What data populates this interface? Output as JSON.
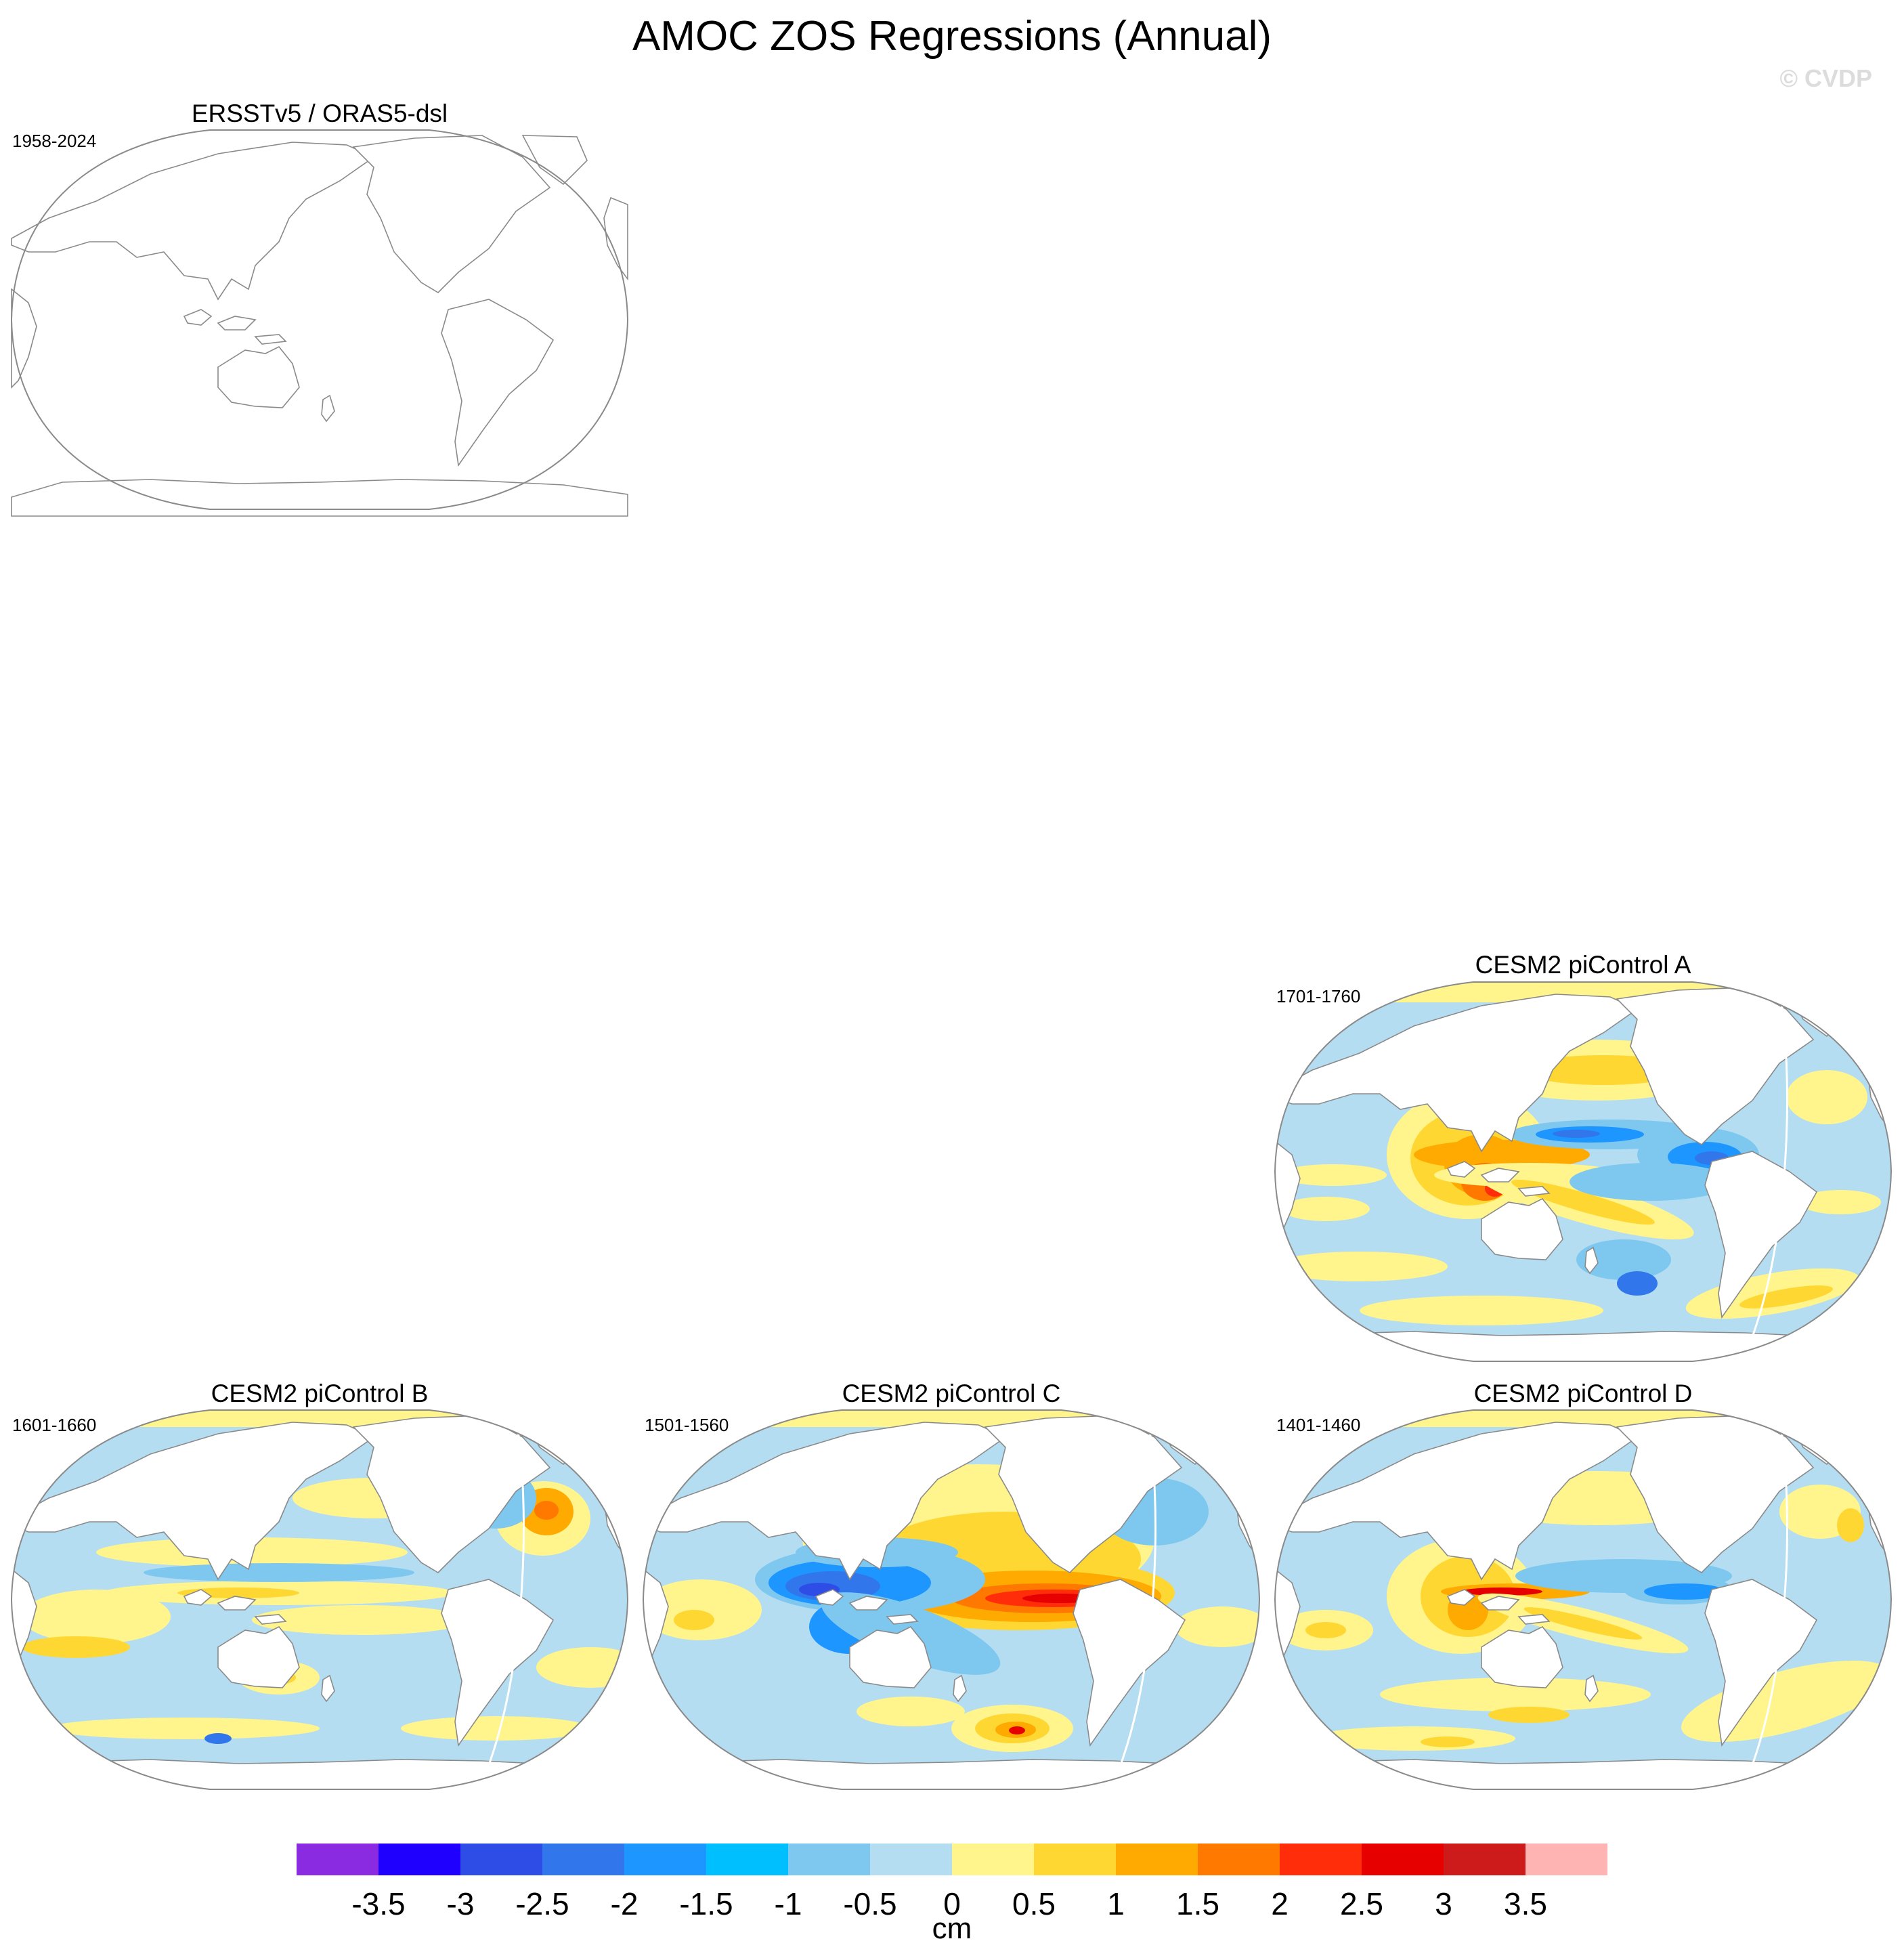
{
  "figure": {
    "title": "AMOC ZOS Regressions (Annual)",
    "watermark": "© CVDP"
  },
  "panels": [
    {
      "title": "ERSSTv5 / ORAS5-dsl",
      "period": "1958-2024",
      "field": "none"
    },
    {
      "title": "CESM2 piControl A",
      "period": "1701-1760",
      "field": "A"
    },
    {
      "title": "CESM2 piControl B",
      "period": "1601-1660",
      "field": "B"
    },
    {
      "title": "CESM2 piControl C",
      "period": "1501-1560",
      "field": "C"
    },
    {
      "title": "CESM2 piControl D",
      "period": "1401-1460",
      "field": "D"
    }
  ],
  "colorbar": {
    "units": "cm",
    "levels": [
      "-3.5",
      "-3",
      "-2.5",
      "-2",
      "-1.5",
      "-1",
      "-0.5",
      "0",
      "0.5",
      "1",
      "1.5",
      "2",
      "2.5",
      "3",
      "3.5"
    ],
    "colors": [
      "#8a2be2",
      "#1f00ff",
      "#2e4de6",
      "#3276ec",
      "#1e96ff",
      "#00bfff",
      "#7ec8f0",
      "#b4ddf2",
      "#fff58c",
      "#ffd733",
      "#ffaa00",
      "#ff7800",
      "#ff2d0a",
      "#e60000",
      "#cd1b1b",
      "#ffb4b4"
    ]
  }
}
